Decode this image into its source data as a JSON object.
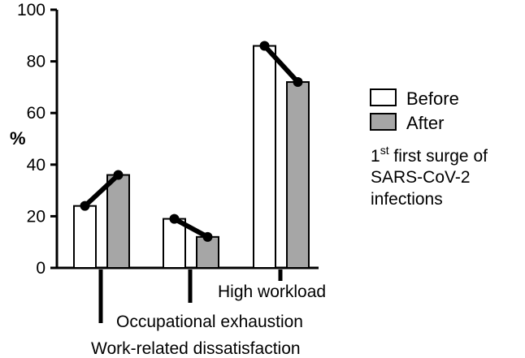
{
  "chart_data": {
    "type": "bar",
    "ylabel": "%",
    "ylim": [
      0,
      100
    ],
    "yticks": [
      "0",
      "20",
      "40",
      "60",
      "80",
      "100"
    ],
    "categories": [
      "Work-related dissatisfaction",
      "Occupational exhaustion",
      "High workload"
    ],
    "series": [
      {
        "name": "Before",
        "values": [
          24,
          19,
          86
        ],
        "color": "#ffffff"
      },
      {
        "name": "After",
        "values": [
          36,
          12,
          72
        ],
        "color": "#a6a6a6"
      }
    ],
    "connector_color": "#000000",
    "legend_position": "right",
    "annotation": {
      "sup_base": "1",
      "sup": "st",
      "line1_rest": " first surge of",
      "line2": "SARS-CoV-2",
      "line3": "infections"
    }
  }
}
